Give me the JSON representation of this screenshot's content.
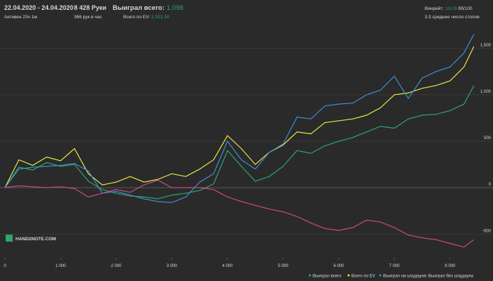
{
  "header": {
    "date_range": "22.04.2020 - 24.04.2020",
    "active": "Активен 23ч 1м",
    "hands": "8 428 Руки",
    "hands_per_hour": "366 рук в час",
    "won_label": "Выиграл всего:",
    "won_value": "1,098",
    "ev_label": "Всего по EV:",
    "ev_value": "1,521.50",
    "winrate_label": "Винрейт:",
    "winrate_value": "13.03",
    "winrate_unit": "бб/100",
    "tables": "3.3 среднее число столов",
    "watermark": "HAND2NOTE.COM"
  },
  "chart_data": {
    "type": "line",
    "x": [
      0,
      250,
      500,
      750,
      1000,
      1250,
      1500,
      1750,
      2000,
      2250,
      2500,
      2750,
      3000,
      3250,
      3500,
      3750,
      4000,
      4250,
      4500,
      4750,
      5000,
      5250,
      5500,
      5750,
      6000,
      6250,
      6500,
      6750,
      7000,
      7250,
      7500,
      7750,
      8000,
      8250,
      8428
    ],
    "series": [
      {
        "name": "Выиграл всего",
        "color": "#2fa56b",
        "values": [
          0,
          220,
          190,
          270,
          230,
          250,
          70,
          -20,
          -60,
          -90,
          -100,
          -120,
          -80,
          -60,
          -30,
          40,
          400,
          230,
          70,
          120,
          230,
          400,
          370,
          450,
          500,
          540,
          600,
          660,
          640,
          740,
          780,
          790,
          830,
          900,
          1098
        ]
      },
      {
        "name": "Всего по EV",
        "color": "#e6e64a",
        "values": [
          0,
          300,
          240,
          330,
          290,
          420,
          150,
          30,
          60,
          120,
          60,
          90,
          150,
          120,
          200,
          300,
          560,
          420,
          250,
          380,
          460,
          600,
          580,
          700,
          720,
          740,
          780,
          860,
          1000,
          1020,
          1070,
          1100,
          1150,
          1300,
          1520
        ]
      },
      {
        "name": "Выиграл на шоудауне",
        "color": "#3d8fd8",
        "values": [
          0,
          200,
          220,
          230,
          240,
          260,
          180,
          -60,
          -40,
          -80,
          -120,
          -150,
          -160,
          -100,
          60,
          150,
          500,
          300,
          200,
          380,
          470,
          760,
          740,
          880,
          900,
          910,
          1000,
          1050,
          1200,
          960,
          1180,
          1250,
          1300,
          1450,
          1650
        ]
      },
      {
        "name": "Выиграл без шоудауна",
        "color": "#d04a7c",
        "values": [
          0,
          20,
          10,
          0,
          10,
          -10,
          -100,
          -60,
          -20,
          -50,
          30,
          80,
          0,
          0,
          0,
          -20,
          -100,
          -150,
          -190,
          -230,
          -260,
          -310,
          -380,
          -440,
          -460,
          -430,
          -350,
          -370,
          -430,
          -510,
          -540,
          -560,
          -600,
          -640,
          -560
        ]
      }
    ],
    "xlim": [
      0,
      8500
    ],
    "ylim": [
      -740,
      1680
    ],
    "xticks": [
      0,
      {
        "value": 1000,
        "label": "1 000"
      },
      {
        "value": 2000,
        "label": "2 000"
      },
      {
        "value": 3000,
        "label": "3 000"
      },
      {
        "value": 4000,
        "label": "4 000"
      },
      {
        "value": 5000,
        "label": "5 000"
      },
      {
        "value": 6000,
        "label": "6 000"
      },
      {
        "value": 7000,
        "label": "7 000"
      },
      {
        "value": 8000,
        "label": "8 000"
      }
    ],
    "yticks": [
      -500,
      0,
      500,
      {
        "value": 1000,
        "label": "1,000"
      },
      {
        "value": 1500,
        "label": "1,500"
      }
    ],
    "grid": true
  }
}
